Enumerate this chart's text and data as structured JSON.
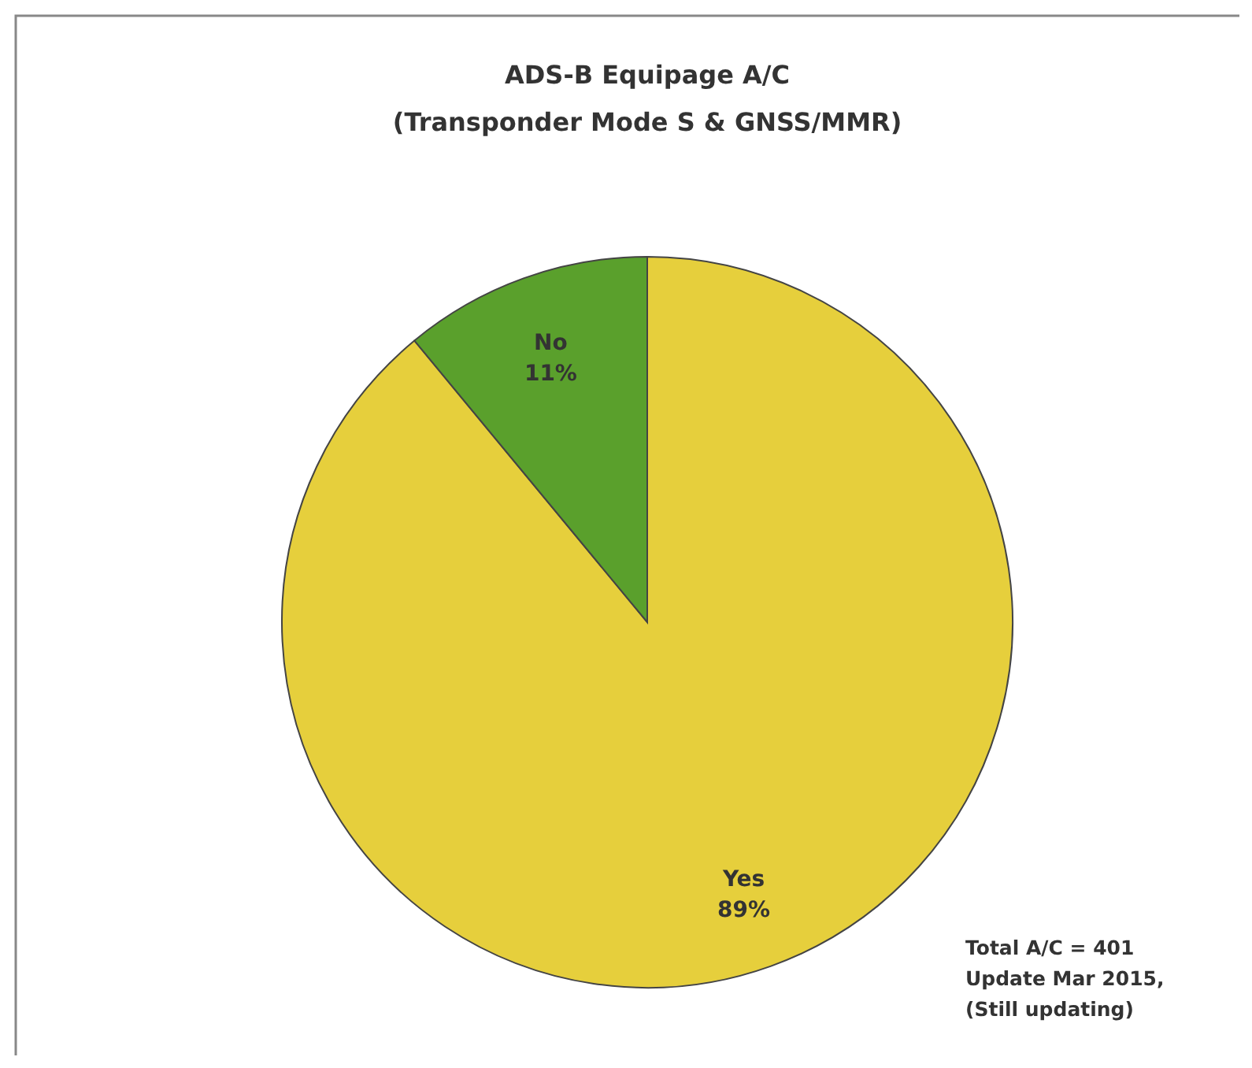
{
  "chart_data": {
    "type": "pie",
    "title": "ADS-B Equipage A/C",
    "subtitle": "(Transponder Mode S & GNSS/MMR)",
    "categories": [
      "Yes",
      "No"
    ],
    "values": [
      89,
      11
    ],
    "colors": [
      "#e6cf3c",
      "#5aa02c"
    ],
    "value_labels": [
      "89%",
      "11%"
    ],
    "legend": false,
    "annotations": [
      "Total A/C = 401",
      "Update Mar 2015,",
      "(Still updating)"
    ]
  }
}
